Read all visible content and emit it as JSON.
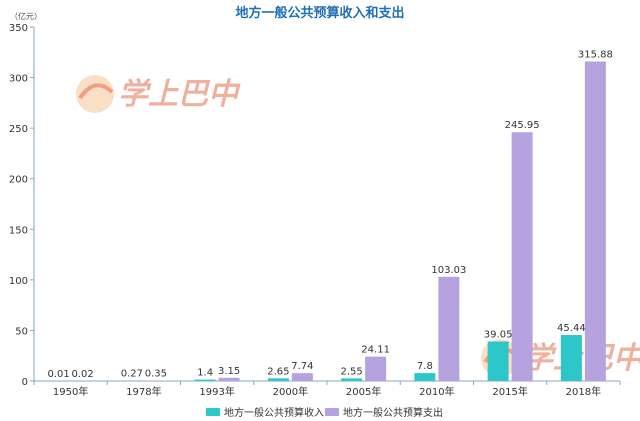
{
  "chart_data": {
    "type": "bar",
    "title": "地方一般公共预算收入和支出",
    "unit_label": "（亿元）",
    "categories": [
      "1950年",
      "1978年",
      "1993年",
      "2000年",
      "2005年",
      "2010年",
      "2015年",
      "2018年"
    ],
    "series": [
      {
        "name": "地方一般公共预算收入",
        "color": "#2ec7c9",
        "values": [
          0.01,
          0.27,
          1.4,
          2.65,
          2.55,
          7.8,
          39.05,
          45.44
        ],
        "labels": [
          "0.01",
          "0.27",
          "1.4",
          "2.65",
          "2.55",
          "7.8",
          "39.05",
          "45.44"
        ]
      },
      {
        "name": "地方一般公共预算支出",
        "color": "#b6a2de",
        "values": [
          0.02,
          0.35,
          3.15,
          7.74,
          24.11,
          103.03,
          245.95,
          315.88
        ],
        "labels": [
          "0.02",
          "0.35",
          "3.15",
          "7.74",
          "24.11",
          "103.03",
          "245.95",
          "315.88"
        ]
      }
    ],
    "yticks": [
      "0",
      "50",
      "100",
      "150",
      "200",
      "250",
      "300",
      "350"
    ],
    "ylim": [
      0,
      350
    ],
    "grid": false,
    "legend_position": "bottom-center",
    "watermark": "学上巴中"
  }
}
